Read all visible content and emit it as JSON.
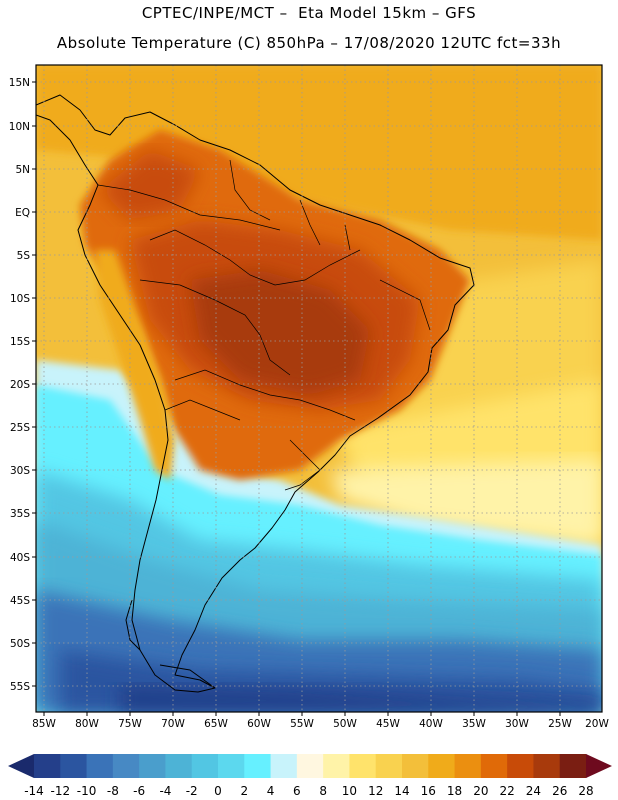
{
  "header": {
    "title_line1": "CPTEC/INPE/MCT –  Eta Model 15km – GFS",
    "title_line2": "Absolute Temperature (C) 850hPa – 17/08/2020 12UTC fct=33h"
  },
  "map": {
    "region": "South America",
    "lat_labels": [
      "15N",
      "10N",
      "5N",
      "EQ",
      "5S",
      "10S",
      "15S",
      "20S",
      "25S",
      "30S",
      "35S",
      "40S",
      "45S",
      "50S",
      "55S"
    ],
    "lon_labels": [
      "85W",
      "80W",
      "75W",
      "70W",
      "65W",
      "60W",
      "55W",
      "50W",
      "45W",
      "40W",
      "35W",
      "30W",
      "25W",
      "20W"
    ]
  },
  "colorbar": {
    "labels": [
      "-14",
      "-12",
      "-10",
      "-8",
      "-6",
      "-4",
      "-2",
      "0",
      "2",
      "4",
      "6",
      "8",
      "10",
      "12",
      "14",
      "16",
      "18",
      "20",
      "22",
      "24",
      "26",
      "28"
    ],
    "colors": [
      "#243f8a",
      "#2b55a0",
      "#3a73b8",
      "#4789c4",
      "#4a9ecc",
      "#4db3d6",
      "#52c6e3",
      "#5cd8ee",
      "#66f0ff",
      "#c8f3fb",
      "#fff7e0",
      "#fff3a8",
      "#ffe36b",
      "#f9d24f",
      "#f3bf3a",
      "#f0ab1a",
      "#eb8f10",
      "#e06a08",
      "#c84b08",
      "#a83a0c",
      "#7a1e12"
    ],
    "low_arrow_color": "#1a2a6c",
    "high_arrow_color": "#6e0a1e"
  }
}
